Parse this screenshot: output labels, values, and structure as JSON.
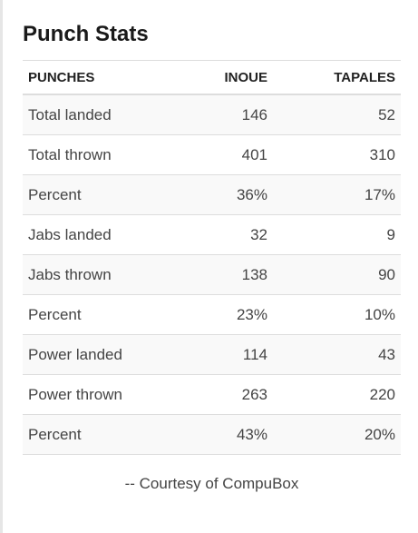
{
  "title": "Punch Stats",
  "table": {
    "headers": [
      "PUNCHES",
      "INOUE",
      "TAPALES"
    ],
    "rows": [
      [
        "Total landed",
        "146",
        "52"
      ],
      [
        "Total thrown",
        "401",
        "310"
      ],
      [
        "Percent",
        "36%",
        "17%"
      ],
      [
        "Jabs landed",
        "32",
        "9"
      ],
      [
        "Jabs thrown",
        "138",
        "90"
      ],
      [
        "Percent",
        "23%",
        "10%"
      ],
      [
        "Power landed",
        "114",
        "43"
      ],
      [
        "Power thrown",
        "263",
        "220"
      ],
      [
        "Percent",
        "43%",
        "20%"
      ]
    ]
  },
  "credit": "-- Courtesy of CompuBox",
  "colors": {
    "stripe": "#f9f9f9",
    "border": "#dddddd",
    "text": "#444444"
  }
}
